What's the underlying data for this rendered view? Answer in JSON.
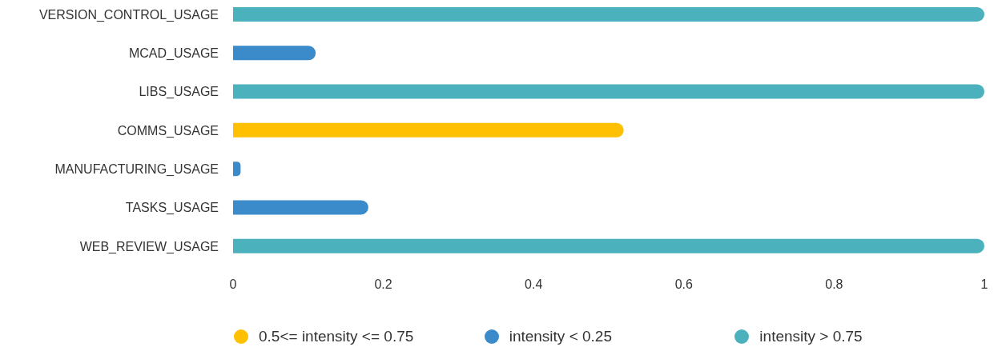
{
  "chart_data": {
    "type": "bar",
    "orientation": "horizontal",
    "stacked": true,
    "categories": [
      "VERSION_CONTROL_USAGE",
      "MCAD_USAGE",
      "LIBS_USAGE",
      "COMMS_USAGE",
      "MANUFACTURING_USAGE",
      "TASKS_USAGE",
      "WEB_REVIEW_USAGE"
    ],
    "series": [
      {
        "name": "0.5<= intensity <= 0.75",
        "color": "#fec000",
        "values": [
          null,
          null,
          null,
          0.52,
          null,
          null,
          null
        ]
      },
      {
        "name": "intensity < 0.25",
        "color": "#3b8ac9",
        "values": [
          null,
          0.11,
          null,
          null,
          0.01,
          0.18,
          null
        ]
      },
      {
        "name": "intensity > 0.75",
        "color": "#4ab1bd",
        "values": [
          1,
          null,
          1,
          null,
          null,
          null,
          1
        ]
      }
    ],
    "xlim": [
      0,
      1
    ],
    "xticks": [
      0,
      0.2,
      0.4,
      0.6,
      0.8,
      1
    ],
    "grid": false,
    "legend": "bottom"
  }
}
